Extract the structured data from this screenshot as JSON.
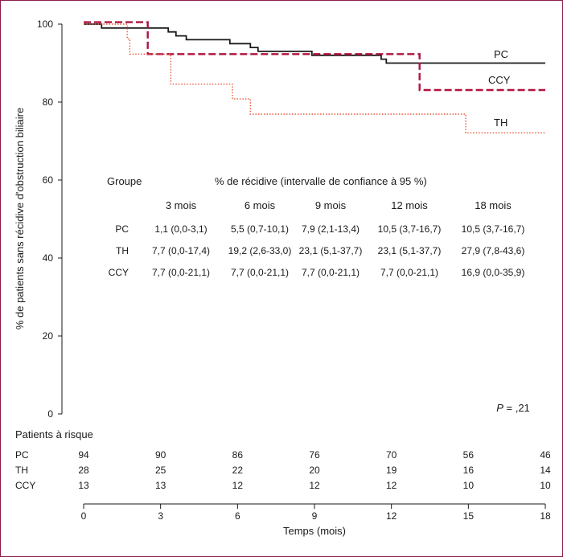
{
  "chart_data": {
    "type": "line",
    "step": true,
    "ylabel": "% de patients sans récidive d'obstruction biliaire",
    "xlabel": "Temps (mois)",
    "xlim": [
      0,
      18
    ],
    "ylim": [
      0,
      100
    ],
    "x_ticks": [
      "0",
      "3",
      "6",
      "9",
      "12",
      "15",
      "18"
    ],
    "y_ticks": [
      "0",
      "20",
      "40",
      "60",
      "80",
      "100"
    ],
    "colors": {
      "PC": "#1a1a1a",
      "CCY": "#b0123f",
      "TH": "#e8563a"
    },
    "series": [
      {
        "name": "PC",
        "style": "solid",
        "points": [
          [
            0,
            100
          ],
          [
            0.7,
            100
          ],
          [
            0.7,
            99
          ],
          [
            3.3,
            99
          ],
          [
            3.3,
            98
          ],
          [
            3.6,
            98
          ],
          [
            3.6,
            97
          ],
          [
            4.0,
            97
          ],
          [
            4.0,
            96
          ],
          [
            5.7,
            96
          ],
          [
            5.7,
            95
          ],
          [
            6.5,
            95
          ],
          [
            6.5,
            94
          ],
          [
            6.8,
            94
          ],
          [
            6.8,
            93
          ],
          [
            8.9,
            93
          ],
          [
            8.9,
            92
          ],
          [
            11.6,
            92
          ],
          [
            11.6,
            91
          ],
          [
            11.8,
            91
          ],
          [
            11.8,
            90
          ],
          [
            18,
            90
          ]
        ]
      },
      {
        "name": "CCY",
        "style": "dashed",
        "points": [
          [
            0,
            100.5
          ],
          [
            2.5,
            100.5
          ],
          [
            2.5,
            92.3
          ],
          [
            13.1,
            92.3
          ],
          [
            13.1,
            83.1
          ],
          [
            18,
            83.1
          ]
        ]
      },
      {
        "name": "TH",
        "style": "dotted",
        "points": [
          [
            0,
            100
          ],
          [
            1.7,
            100
          ],
          [
            1.7,
            96.2
          ],
          [
            1.8,
            96.2
          ],
          [
            1.8,
            92.3
          ],
          [
            3.4,
            92.3
          ],
          [
            3.4,
            84.6
          ],
          [
            5.8,
            84.6
          ],
          [
            5.8,
            80.8
          ],
          [
            6.5,
            80.8
          ],
          [
            6.5,
            76.9
          ],
          [
            14.9,
            76.9
          ],
          [
            14.9,
            72.1
          ],
          [
            18,
            72.1
          ]
        ]
      }
    ],
    "series_labels": [
      "PC",
      "CCY",
      "TH"
    ],
    "p_value": {
      "symbol": "P",
      "text": " = ,21"
    },
    "table": {
      "header_group": "Groupe",
      "header_title": "% de récidive (intervalle de confiance à 95 %)",
      "columns": [
        "3 mois",
        "6 mois",
        "9 mois",
        "12 mois",
        "18 mois"
      ],
      "rows": [
        {
          "group": "PC",
          "values": [
            "1,1 (0,0-3,1)",
            "5,5 (0,7-10,1)",
            "7,9 (2,1-13,4)",
            "10,5 (3,7-16,7)",
            "10,5 (3,7-16,7)"
          ]
        },
        {
          "group": "TH",
          "values": [
            "7,7 (0,0-17,4)",
            "19,2 (2,6-33,0)",
            "23,1 (5,1-37,7)",
            "23,1 (5,1-37,7)",
            "27,9 (7,8-43,6)"
          ]
        },
        {
          "group": "CCY",
          "values": [
            "7,7 (0,0-21,1)",
            "7,7 (0,0-21,1)",
            "7,7 (0,0-21,1)",
            "7,7 (0,0-21,1)",
            "16,9 (0,0-35,9)"
          ]
        }
      ]
    },
    "at_risk": {
      "title": "Patients à risque",
      "rows": [
        {
          "group": "PC",
          "values": [
            "94",
            "90",
            "86",
            "76",
            "70",
            "56",
            "46"
          ]
        },
        {
          "group": "TH",
          "values": [
            "28",
            "25",
            "22",
            "20",
            "19",
            "16",
            "14"
          ]
        },
        {
          "group": "CCY",
          "values": [
            "13",
            "13",
            "12",
            "12",
            "12",
            "10",
            "10"
          ]
        }
      ]
    }
  }
}
